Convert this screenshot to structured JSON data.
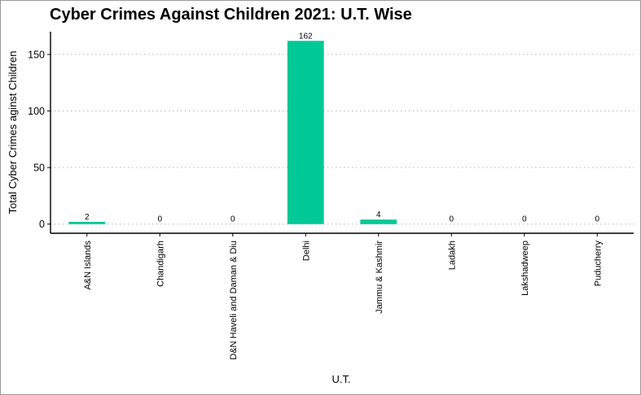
{
  "chart_data": {
    "type": "bar",
    "title": "Cyber Crimes Against Children 2021: U.T. Wise",
    "xlabel": "U.T.",
    "ylabel": "Total Cyber Crimes aginst Children",
    "categories": [
      "A&N Islands",
      "Chandigarh",
      "D&N Haveli and Daman & Diu",
      "Delhi",
      "Jammu & Kashmir",
      "Ladakh",
      "Lakshadweep",
      "Puducherry"
    ],
    "values": [
      2,
      0,
      0,
      162,
      4,
      0,
      0,
      0
    ],
    "data_labels": [
      "2",
      "0",
      "0",
      "162",
      "4",
      "0",
      "0",
      "0"
    ],
    "yticks": [
      0,
      50,
      100,
      150
    ],
    "ytick_labels": [
      "0",
      "50",
      "100",
      "150"
    ],
    "ylim": [
      -8.1,
      170.1
    ],
    "grid": "horizontal dotted",
    "bar_color": "#00c896"
  }
}
